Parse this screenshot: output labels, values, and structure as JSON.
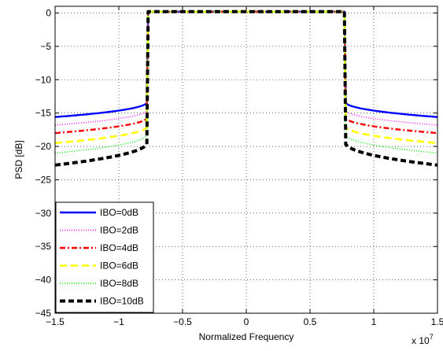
{
  "chart_data": {
    "type": "line",
    "title": "",
    "xlabel": "Normalized Frequency",
    "ylabel": "PSD [dB]",
    "x_scale_label": "x 10",
    "x_scale_exponent": "7",
    "xlim": [
      -1.5,
      1.5
    ],
    "ylim": [
      -45,
      1
    ],
    "xticks": [
      -1.5,
      -1,
      -0.5,
      0,
      0.5,
      1,
      1.5
    ],
    "xtick_labels": [
      "−1.5",
      "−1",
      "−0.5",
      "0",
      "0.5",
      "1",
      "1.5"
    ],
    "yticks": [
      0,
      -5,
      -10,
      -15,
      -20,
      -25,
      -30,
      -35,
      -40,
      -45
    ],
    "ytick_labels": [
      "0",
      "−5",
      "−10",
      "−15",
      "−20",
      "−25",
      "−30",
      "−35",
      "−40",
      "−45"
    ],
    "grid": true,
    "legend_position": "bottom-left",
    "band_edge": 0.77,
    "series": [
      {
        "name": "IBO=0dB",
        "color": "#0000ff",
        "style": "solid",
        "edge_level": -13.2,
        "outer_level": -15.6
      },
      {
        "name": "IBO=2dB",
        "color": "#ff00ff",
        "style": "dotted",
        "edge_level": -14.4,
        "outer_level": -16.8
      },
      {
        "name": "IBO=4dB",
        "color": "#ff0000",
        "style": "dashdot",
        "edge_level": -15.5,
        "outer_level": -18.0
      },
      {
        "name": "IBO=6dB",
        "color": "#ffff00",
        "style": "dashed",
        "edge_level": -16.8,
        "outer_level": -19.5
      },
      {
        "name": "IBO=8dB",
        "color": "#00ee00",
        "style": "dotted",
        "edge_level": -18.0,
        "outer_level": -21.0
      },
      {
        "name": "IBO=10dB",
        "color": "#000000",
        "style": "dashed",
        "edge_level": -19.2,
        "outer_level": -22.8
      }
    ]
  }
}
